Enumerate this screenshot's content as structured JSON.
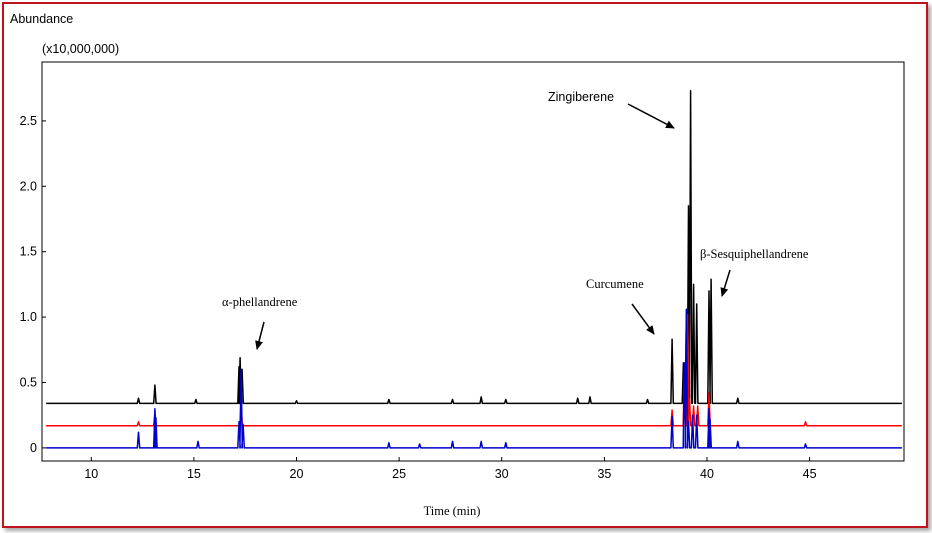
{
  "chart_data": {
    "type": "line",
    "ylabel": "Abundance",
    "yunit": "(x10,000,000)",
    "xlabel": "Time (min)",
    "xlim": [
      7.6,
      49.6
    ],
    "ylim": [
      -0.1,
      2.95
    ],
    "xticks": [
      10,
      15,
      20,
      25,
      30,
      35,
      40,
      45
    ],
    "yticks": [
      0,
      0.5,
      1.0,
      1.5,
      2.0,
      2.5
    ],
    "ytick_labels": [
      "0",
      "0.5",
      "1.0",
      "1.5",
      "2.0",
      "2.5"
    ],
    "grid": false,
    "colors": {
      "top": "#000000",
      "middle": "#ff0000",
      "bottom": "#0000cc",
      "frame": "#c0141c"
    },
    "series": [
      {
        "color": "#000000",
        "baseline": 0.34,
        "peaks": [
          [
            12.3,
            0.38
          ],
          [
            13.1,
            0.48
          ],
          [
            15.1,
            0.37
          ],
          [
            17.2,
            0.62
          ],
          [
            17.25,
            0.69
          ],
          [
            17.35,
            0.6
          ],
          [
            20.0,
            0.36
          ],
          [
            24.5,
            0.37
          ],
          [
            27.6,
            0.37
          ],
          [
            29.0,
            0.39
          ],
          [
            30.2,
            0.37
          ],
          [
            33.7,
            0.38
          ],
          [
            34.3,
            0.39
          ],
          [
            37.1,
            0.37
          ],
          [
            38.3,
            0.83
          ],
          [
            38.85,
            0.65
          ],
          [
            39.0,
            1.05
          ],
          [
            39.1,
            1.85
          ],
          [
            39.2,
            2.73
          ],
          [
            39.35,
            1.25
          ],
          [
            39.5,
            1.1
          ],
          [
            40.1,
            1.2
          ],
          [
            40.2,
            1.29
          ],
          [
            41.5,
            0.38
          ]
        ]
      },
      {
        "color": "#ff0000",
        "baseline": 0.17,
        "peaks": [
          [
            12.3,
            0.2
          ],
          [
            13.1,
            0.27
          ],
          [
            17.3,
            0.35
          ],
          [
            38.3,
            0.29
          ],
          [
            38.9,
            0.62
          ],
          [
            39.05,
            1.02
          ],
          [
            39.15,
            0.38
          ],
          [
            39.35,
            0.32
          ],
          [
            39.55,
            0.32
          ],
          [
            40.1,
            0.42
          ],
          [
            44.8,
            0.2
          ]
        ]
      },
      {
        "color": "#0000cc",
        "baseline": 0.0,
        "peaks": [
          [
            12.3,
            0.12
          ],
          [
            13.1,
            0.3
          ],
          [
            13.15,
            0.23
          ],
          [
            15.2,
            0.05
          ],
          [
            17.2,
            0.2
          ],
          [
            17.3,
            0.6
          ],
          [
            17.4,
            0.18
          ],
          [
            24.5,
            0.04
          ],
          [
            26.0,
            0.03
          ],
          [
            27.6,
            0.05
          ],
          [
            29.0,
            0.05
          ],
          [
            30.2,
            0.04
          ],
          [
            38.3,
            0.24
          ],
          [
            38.9,
            0.65
          ],
          [
            39.0,
            1.06
          ],
          [
            39.1,
            0.2
          ],
          [
            39.3,
            0.25
          ],
          [
            39.5,
            0.25
          ],
          [
            40.1,
            0.3
          ],
          [
            40.15,
            0.22
          ],
          [
            41.5,
            0.05
          ],
          [
            44.8,
            0.03
          ]
        ]
      }
    ],
    "annotations": [
      {
        "id": "zingiberene",
        "text": "Zingiberene",
        "x": 39.1,
        "y": 2.35
      },
      {
        "id": "b-sesqui",
        "text": "β-Sesquiphellandrene",
        "x": 40.7,
        "y": 1.1
      },
      {
        "id": "curcumene",
        "text": "Curcumene",
        "x": 38.3,
        "y": 0.83
      },
      {
        "id": "a-phell",
        "text": "α-phellandrene",
        "x": 17.7,
        "y": 0.74
      }
    ]
  }
}
